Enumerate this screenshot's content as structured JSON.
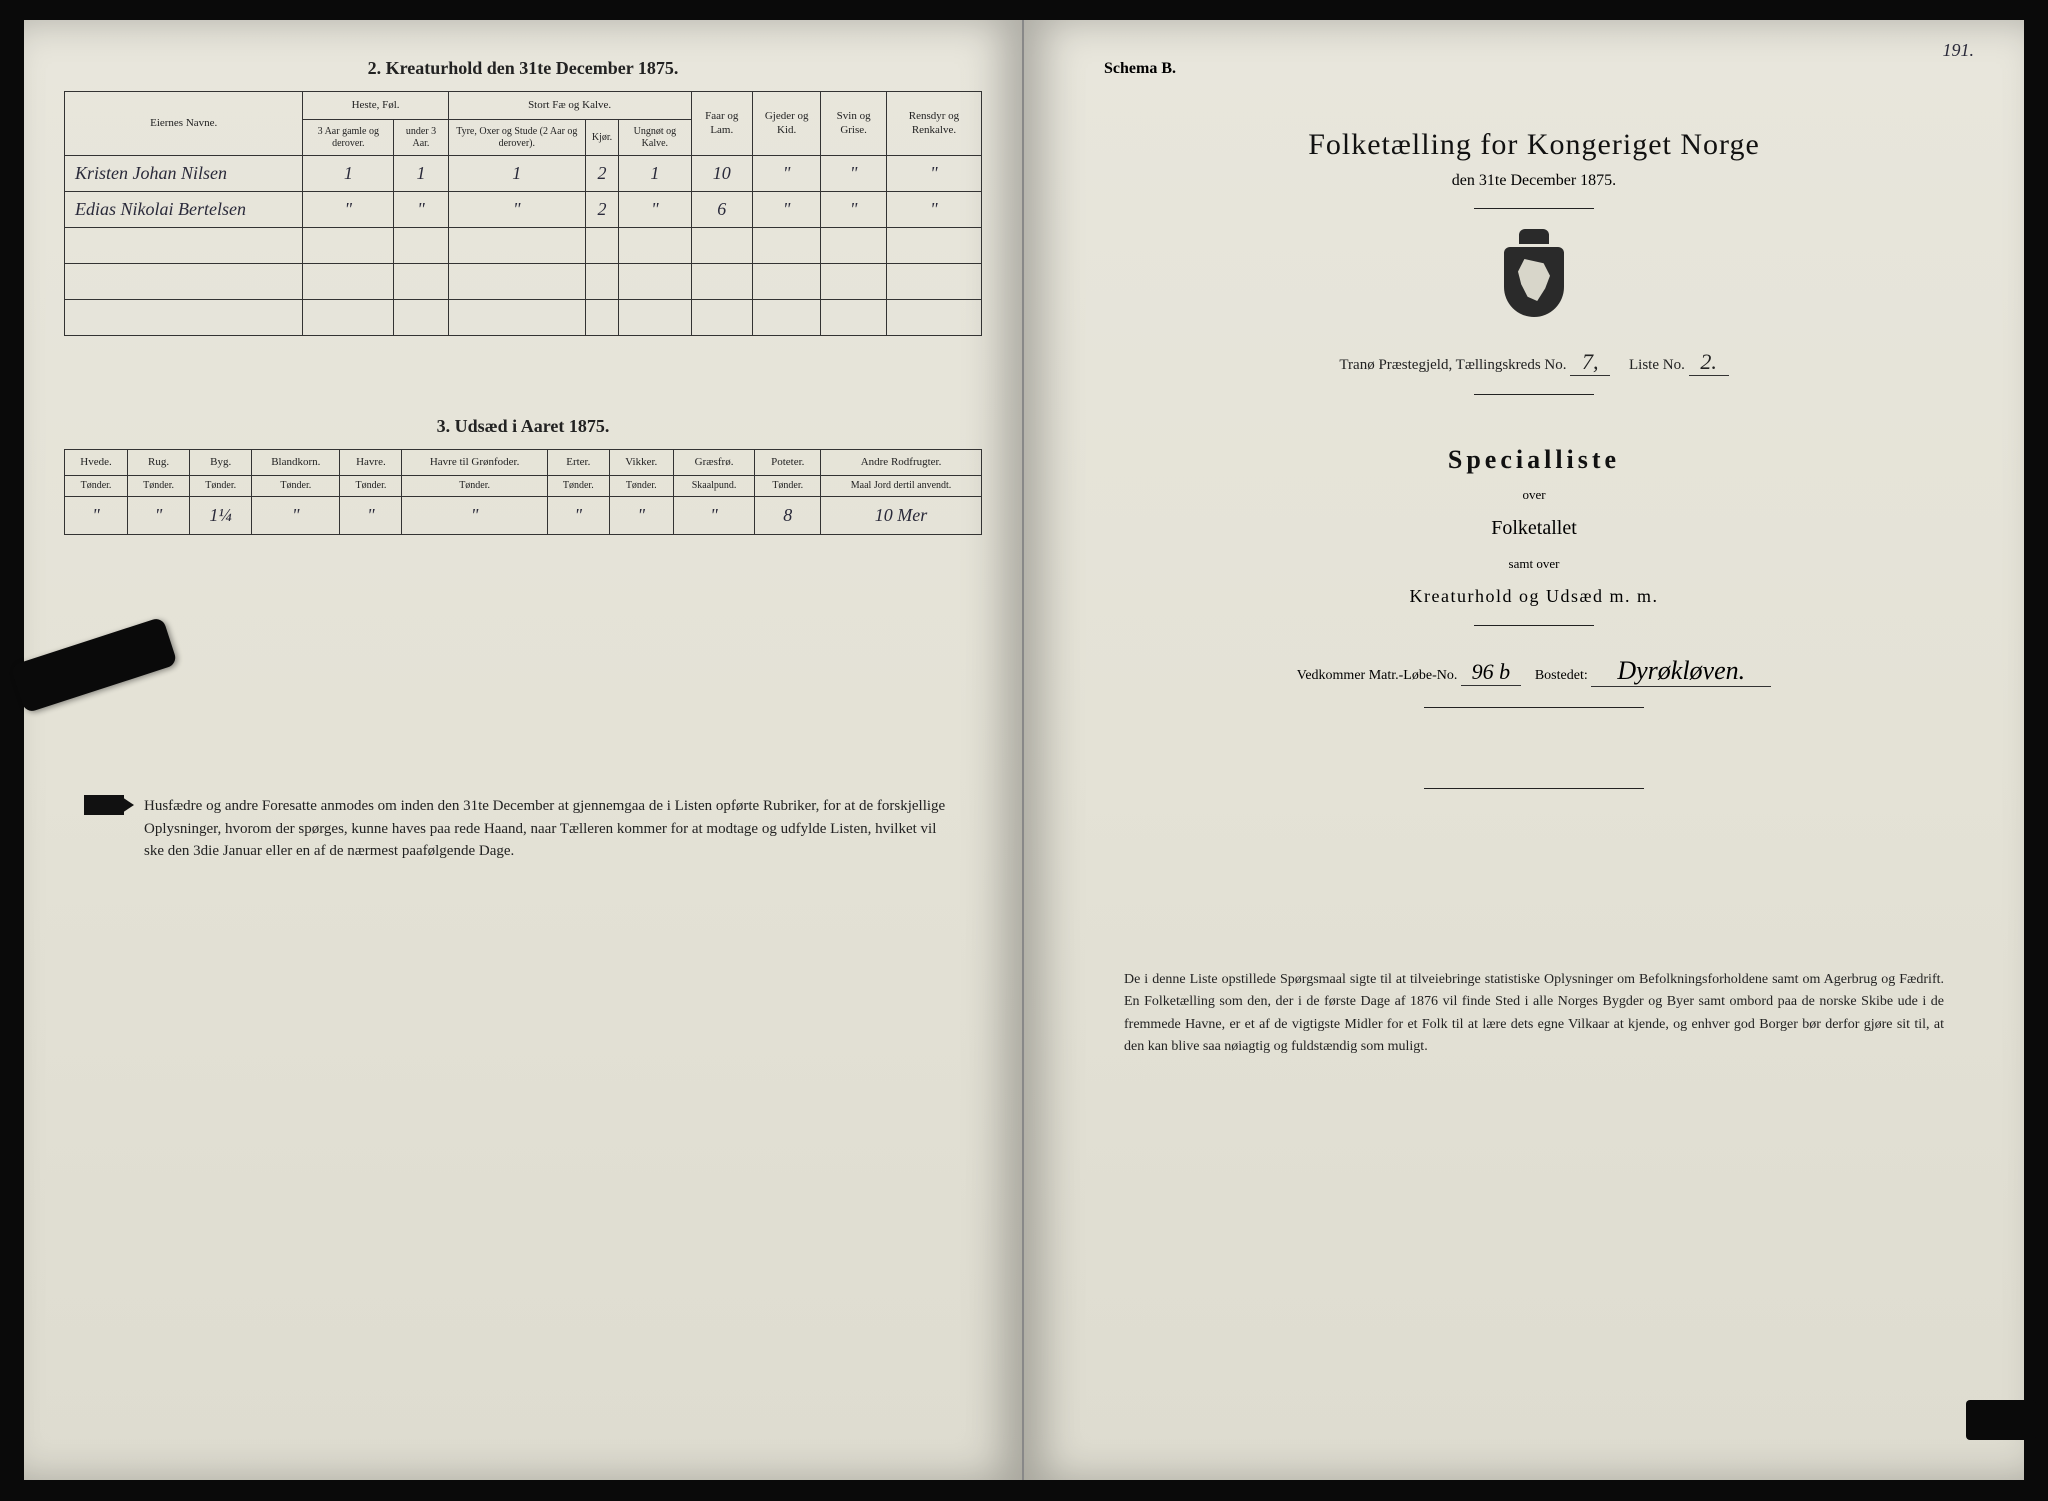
{
  "colors": {
    "page_bg": "#e4e2d6",
    "ink": "#222222",
    "handwriting": "#2a2a3a",
    "border": "#333333"
  },
  "left": {
    "section2_title": "2. Kreaturhold den 31te December 1875.",
    "table1": {
      "col_owner": "Eiernes Navne.",
      "group_horse": "Heste, Føl.",
      "group_cattle": "Stort Fæ og Kalve.",
      "col_sheep": "Faar og Lam.",
      "col_goat": "Gjeder og Kid.",
      "col_pig": "Svin og Grise.",
      "col_reindeer": "Rensdyr og Renkalve.",
      "sub_horse_old": "3 Aar gamle og derover.",
      "sub_horse_young": "under 3 Aar.",
      "sub_bull": "Tyre, Oxer og Stude (2 Aar og derover).",
      "sub_cow": "Kjør.",
      "sub_calf": "Ungnøt og Kalve.",
      "rows": [
        {
          "name": "Kristen Johan Nilsen",
          "v": [
            "1",
            "1",
            "1",
            "2",
            "1",
            "10",
            "\"",
            "\"",
            "\""
          ]
        },
        {
          "name": "Edias Nikolai Bertelsen",
          "v": [
            "\"",
            "\"",
            "\"",
            "2",
            "\"",
            "6",
            "\"",
            "\"",
            "\""
          ]
        }
      ]
    },
    "section3_title": "3. Udsæd i Aaret 1875.",
    "table2": {
      "cols": [
        "Hvede.",
        "Rug.",
        "Byg.",
        "Blandkorn.",
        "Havre.",
        "Havre til Grønfoder.",
        "Erter.",
        "Vikker.",
        "Græsfrø.",
        "Poteter.",
        "Andre Rodfrugter."
      ],
      "unit": "Tønder.",
      "unit_grass": "Skaalpund.",
      "unit_root": "Maal Jord dertil anvendt.",
      "row": [
        "\"",
        "\"",
        "1¼",
        "\"",
        "\"",
        "\"",
        "\"",
        "\"",
        "\"",
        "8",
        "10 Mer"
      ]
    },
    "footnote": "Husfædre og andre Foresatte anmodes om inden den 31te December at gjennemgaa de i Listen opførte Rubriker, for at de forskjellige Oplysninger, hvorom der spørges, kunne haves paa rede Haand, naar Tælleren kommer for at modtage og udfylde Listen, hvilket vil ske den 3die Januar eller en af de nærmest paafølgende Dage."
  },
  "right": {
    "page_no": "191.",
    "schema": "Schema B.",
    "main_title": "Folketælling for Kongeriget Norge",
    "date_line": "den 31te December 1875.",
    "district_prefix": "Tranø Præstegjeld, Tællingskreds No.",
    "district_no": "7,",
    "liste_label": "Liste No.",
    "liste_no": "2.",
    "spec_title": "Specialliste",
    "over": "over",
    "folketallet": "Folketallet",
    "samt": "samt over",
    "kreatur": "Kreaturhold og Udsæd m. m.",
    "vedkommer_label": "Vedkommer Matr.-Løbe-No.",
    "matr_no": "96 b",
    "bosted_label": "Bostedet:",
    "bosted": "Dyrøkløven.",
    "footnote": "De i denne Liste opstillede Spørgsmaal sigte til at tilveiebringe statistiske Oplysninger om Befolkningsforholdene samt om Agerbrug og Fædrift. En Folketælling som den, der i de første Dage af 1876 vil finde Sted i alle Norges Bygder og Byer samt ombord paa de norske Skibe ude i de fremmede Havne, er et af de vigtigste Midler for et Folk til at lære dets egne Vilkaar at kjende, og enhver god Borger bør derfor gjøre sit til, at den kan blive saa nøiagtig og fuldstændig som muligt."
  }
}
